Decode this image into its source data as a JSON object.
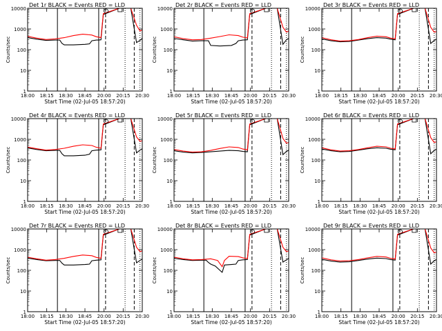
{
  "figure": {
    "xlabel_prefix": "Start Time (02-Jul-05 18:57:20)",
    "ylabel": "Counts/sec",
    "x_ticks": [
      "18:00",
      "18:15",
      "18:30",
      "18:45",
      "20:00",
      "20:15",
      "20:30"
    ],
    "y_ticks": [
      "1",
      "10",
      "100",
      "1000",
      "10000"
    ],
    "y_scale": "log",
    "colors": {
      "events": "#000000",
      "lld": "#ff0000"
    }
  },
  "chart_data": [
    {
      "type": "line",
      "title": "Det 1r  BLACK = Events  RED = LLD",
      "ylim": [
        1,
        10000
      ],
      "series": [
        {
          "name": "BLACK = Events",
          "color": "#000000",
          "x": [
            0,
            0.08,
            0.16,
            0.24,
            0.28,
            0.3,
            0.32,
            0.4,
            0.5,
            0.54,
            0.56,
            0.6,
            0.62,
            0.64,
            0.66,
            0.8,
            0.84,
            0.9,
            0.95,
            0.98,
            1.0
          ],
          "y": [
            380,
            320,
            280,
            290,
            290,
            200,
            170,
            170,
            180,
            190,
            270,
            290,
            290,
            300,
            5000,
            10000,
            10000,
            10000,
            220,
            280,
            350
          ]
        },
        {
          "name": "RED = LLD",
          "color": "#ff0000",
          "x": [
            0,
            0.08,
            0.16,
            0.24,
            0.32,
            0.4,
            0.48,
            0.56,
            0.6,
            0.64,
            0.66,
            0.8,
            0.84,
            0.9,
            0.95,
            0.98,
            1.0
          ],
          "y": [
            440,
            360,
            310,
            330,
            380,
            480,
            560,
            510,
            420,
            380,
            5500,
            10000,
            10000,
            10000,
            1500,
            800,
            900
          ]
        }
      ],
      "vlines_solid": [
        0.26,
        0.62
      ],
      "vlines_dashed": [
        0.68,
        0.93
      ],
      "vlines_dotted": [
        0.85,
        0.98
      ]
    },
    {
      "type": "line",
      "title": "Det 2r  BLACK = Events  RED = LLD",
      "ylim": [
        1,
        10000
      ],
      "series": [
        {
          "name": "BLACK = Events",
          "color": "#000000",
          "x": [
            0,
            0.08,
            0.16,
            0.24,
            0.3,
            0.32,
            0.4,
            0.5,
            0.54,
            0.56,
            0.6,
            0.64,
            0.66,
            0.8,
            0.84,
            0.9,
            0.95,
            0.98,
            1.0
          ],
          "y": [
            350,
            300,
            260,
            270,
            270,
            160,
            150,
            160,
            200,
            270,
            290,
            300,
            5000,
            10000,
            10000,
            10000,
            180,
            300,
            350
          ]
        },
        {
          "name": "RED = LLD",
          "color": "#ff0000",
          "x": [
            0,
            0.08,
            0.16,
            0.24,
            0.32,
            0.4,
            0.48,
            0.56,
            0.6,
            0.64,
            0.66,
            0.8,
            0.84,
            0.9,
            0.95,
            0.98,
            1.0
          ],
          "y": [
            420,
            340,
            300,
            310,
            360,
            430,
            520,
            480,
            400,
            370,
            5500,
            10000,
            10000,
            10000,
            1200,
            700,
            800
          ]
        }
      ],
      "vlines_solid": [
        0.26,
        0.62
      ],
      "vlines_dashed": [
        0.68,
        0.93
      ],
      "vlines_dotted": [
        0.85,
        0.98
      ]
    },
    {
      "type": "line",
      "title": "Det 3r  BLACK = Events  RED = LLD",
      "ylim": [
        1,
        10000
      ],
      "series": [
        {
          "name": "BLACK = Events",
          "color": "#000000",
          "x": [
            0,
            0.08,
            0.16,
            0.24,
            0.32,
            0.4,
            0.48,
            0.56,
            0.6,
            0.64,
            0.66,
            0.8,
            0.84,
            0.9,
            0.95,
            0.98,
            1.0
          ],
          "y": [
            330,
            270,
            240,
            250,
            290,
            340,
            380,
            360,
            320,
            300,
            5000,
            10000,
            10000,
            10000,
            200,
            280,
            320
          ]
        },
        {
          "name": "RED = LLD",
          "color": "#ff0000",
          "x": [
            0,
            0.08,
            0.16,
            0.24,
            0.32,
            0.4,
            0.48,
            0.56,
            0.6,
            0.64,
            0.66,
            0.8,
            0.84,
            0.9,
            0.95,
            0.98,
            1.0
          ],
          "y": [
            380,
            300,
            260,
            270,
            310,
            380,
            450,
            420,
            360,
            330,
            5500,
            10000,
            10000,
            10000,
            1200,
            700,
            750
          ]
        }
      ],
      "vlines_solid": [
        0.26,
        0.62
      ],
      "vlines_dashed": [
        0.68,
        0.93
      ],
      "vlines_dotted": [
        0.85,
        0.98
      ]
    },
    {
      "type": "line",
      "title": "Det 4r  BLACK = Events  RED = LLD",
      "ylim": [
        1,
        10000
      ],
      "series": [
        {
          "name": "BLACK = Events",
          "color": "#000000",
          "x": [
            0,
            0.08,
            0.16,
            0.24,
            0.28,
            0.3,
            0.32,
            0.4,
            0.5,
            0.54,
            0.56,
            0.6,
            0.64,
            0.66,
            0.8,
            0.84,
            0.9,
            0.95,
            0.98,
            1.0
          ],
          "y": [
            380,
            320,
            280,
            290,
            290,
            200,
            160,
            160,
            170,
            190,
            280,
            300,
            310,
            5000,
            10000,
            10000,
            10000,
            220,
            300,
            350
          ]
        },
        {
          "name": "RED = LLD",
          "color": "#ff0000",
          "x": [
            0,
            0.08,
            0.16,
            0.24,
            0.32,
            0.4,
            0.48,
            0.56,
            0.6,
            0.64,
            0.66,
            0.8,
            0.84,
            0.9,
            0.95,
            0.98,
            1.0
          ],
          "y": [
            420,
            350,
            300,
            320,
            370,
            460,
            540,
            500,
            410,
            370,
            5500,
            10000,
            10000,
            10000,
            1300,
            800,
            850
          ]
        }
      ],
      "vlines_solid": [
        0.26,
        0.62
      ],
      "vlines_dashed": [
        0.68,
        0.93
      ],
      "vlines_dotted": [
        0.85,
        0.98
      ]
    },
    {
      "type": "line",
      "title": "Det 5r  BLACK = Events  RED = LLD",
      "ylim": [
        1,
        10000
      ],
      "series": [
        {
          "name": "BLACK = Events",
          "color": "#000000",
          "x": [
            0,
            0.08,
            0.16,
            0.24,
            0.32,
            0.4,
            0.48,
            0.56,
            0.6,
            0.64,
            0.66,
            0.8,
            0.84,
            0.9,
            0.95,
            0.98,
            1.0
          ],
          "y": [
            280,
            240,
            220,
            230,
            250,
            270,
            290,
            280,
            260,
            250,
            5000,
            10000,
            10000,
            10000,
            180,
            260,
            300
          ]
        },
        {
          "name": "RED = LLD",
          "color": "#ff0000",
          "x": [
            0,
            0.08,
            0.16,
            0.24,
            0.32,
            0.4,
            0.48,
            0.56,
            0.6,
            0.64,
            0.66,
            0.8,
            0.84,
            0.9,
            0.95,
            0.98,
            1.0
          ],
          "y": [
            320,
            270,
            240,
            250,
            290,
            360,
            430,
            400,
            340,
            310,
            5500,
            10000,
            10000,
            10000,
            1100,
            650,
            700
          ]
        }
      ],
      "vlines_solid": [
        0.26,
        0.62
      ],
      "vlines_dashed": [
        0.68,
        0.93
      ],
      "vlines_dotted": [
        0.85,
        0.98
      ]
    },
    {
      "type": "line",
      "title": "Det 6r  BLACK = Events  RED = LLD",
      "ylim": [
        1,
        10000
      ],
      "series": [
        {
          "name": "BLACK = Events",
          "color": "#000000",
          "x": [
            0,
            0.08,
            0.16,
            0.24,
            0.32,
            0.4,
            0.48,
            0.56,
            0.6,
            0.64,
            0.66,
            0.8,
            0.84,
            0.9,
            0.95,
            0.98,
            1.0
          ],
          "y": [
            340,
            280,
            250,
            260,
            300,
            350,
            390,
            370,
            330,
            310,
            5000,
            10000,
            10000,
            10000,
            200,
            290,
            330
          ]
        },
        {
          "name": "RED = LLD",
          "color": "#ff0000",
          "x": [
            0,
            0.08,
            0.16,
            0.24,
            0.32,
            0.4,
            0.48,
            0.56,
            0.6,
            0.64,
            0.66,
            0.8,
            0.84,
            0.9,
            0.95,
            0.98,
            1.0
          ],
          "y": [
            390,
            310,
            270,
            280,
            320,
            390,
            460,
            430,
            370,
            340,
            5500,
            10000,
            10000,
            10000,
            1200,
            700,
            760
          ]
        }
      ],
      "vlines_solid": [
        0.26,
        0.62
      ],
      "vlines_dashed": [
        0.68,
        0.93
      ],
      "vlines_dotted": [
        0.85,
        0.98
      ]
    },
    {
      "type": "line",
      "title": "Det 7r  BLACK = Events  RED = LLD",
      "ylim": [
        1,
        10000
      ],
      "series": [
        {
          "name": "BLACK = Events",
          "color": "#000000",
          "x": [
            0,
            0.08,
            0.16,
            0.24,
            0.28,
            0.3,
            0.32,
            0.4,
            0.5,
            0.54,
            0.56,
            0.6,
            0.64,
            0.66,
            0.8,
            0.84,
            0.9,
            0.95,
            0.98,
            1.0
          ],
          "y": [
            390,
            330,
            290,
            300,
            300,
            220,
            180,
            180,
            190,
            200,
            290,
            310,
            320,
            5000,
            10000,
            10000,
            10000,
            230,
            300,
            360
          ]
        },
        {
          "name": "RED = LLD",
          "color": "#ff0000",
          "x": [
            0,
            0.08,
            0.16,
            0.24,
            0.32,
            0.4,
            0.48,
            0.56,
            0.6,
            0.64,
            0.66,
            0.8,
            0.84,
            0.9,
            0.95,
            0.98,
            1.0
          ],
          "y": [
            430,
            360,
            310,
            330,
            380,
            470,
            550,
            510,
            420,
            380,
            5500,
            10000,
            10000,
            10000,
            1300,
            800,
            870
          ]
        }
      ],
      "vlines_solid": [
        0.26,
        0.62
      ],
      "vlines_dashed": [
        0.68,
        0.93
      ],
      "vlines_dotted": [
        0.85,
        0.98
      ]
    },
    {
      "type": "line",
      "title": "Det 8r  BLACK = Events  RED = LLD",
      "ylim": [
        1,
        10000
      ],
      "series": [
        {
          "name": "BLACK = Events",
          "color": "#000000",
          "x": [
            0,
            0.08,
            0.16,
            0.24,
            0.28,
            0.3,
            0.32,
            0.36,
            0.4,
            0.42,
            0.44,
            0.5,
            0.54,
            0.56,
            0.6,
            0.64,
            0.66,
            0.8,
            0.84,
            0.9,
            0.95,
            0.98,
            1.0
          ],
          "y": [
            380,
            330,
            300,
            310,
            310,
            240,
            200,
            160,
            100,
            80,
            180,
            190,
            200,
            300,
            320,
            330,
            5000,
            10000,
            10000,
            10000,
            250,
            320,
            380
          ]
        },
        {
          "name": "RED = LLD",
          "color": "#ff0000",
          "x": [
            0,
            0.08,
            0.16,
            0.24,
            0.32,
            0.38,
            0.42,
            0.44,
            0.48,
            0.56,
            0.6,
            0.64,
            0.66,
            0.8,
            0.84,
            0.9,
            0.95,
            0.98,
            1.0
          ],
          "y": [
            430,
            360,
            320,
            330,
            360,
            300,
            150,
            300,
            480,
            460,
            400,
            370,
            5500,
            10000,
            10000,
            10000,
            1300,
            800,
            870
          ]
        }
      ],
      "vlines_solid": [
        0.26,
        0.62
      ],
      "vlines_dashed": [
        0.68,
        0.93
      ],
      "vlines_dotted": [
        0.85,
        0.98
      ]
    },
    {
      "type": "line",
      "title": "Det 9r  BLACK = Events  RED = LLD",
      "ylim": [
        1,
        10000
      ],
      "series": [
        {
          "name": "BLACK = Events",
          "color": "#000000",
          "x": [
            0,
            0.08,
            0.16,
            0.24,
            0.32,
            0.4,
            0.48,
            0.56,
            0.6,
            0.64,
            0.66,
            0.8,
            0.84,
            0.9,
            0.95,
            0.98,
            1.0
          ],
          "y": [
            340,
            280,
            250,
            260,
            300,
            350,
            390,
            370,
            330,
            310,
            5000,
            10000,
            10000,
            10000,
            200,
            290,
            330
          ]
        },
        {
          "name": "RED = LLD",
          "color": "#ff0000",
          "x": [
            0,
            0.08,
            0.16,
            0.24,
            0.32,
            0.4,
            0.48,
            0.56,
            0.6,
            0.64,
            0.66,
            0.8,
            0.84,
            0.9,
            0.95,
            0.98,
            1.0
          ],
          "y": [
            400,
            320,
            280,
            290,
            330,
            400,
            470,
            440,
            380,
            350,
            5500,
            10000,
            10000,
            10000,
            1200,
            700,
            760
          ]
        }
      ],
      "vlines_solid": [
        0.26,
        0.62
      ],
      "vlines_dashed": [
        0.68,
        0.93
      ],
      "vlines_dotted": [
        0.85,
        0.98
      ]
    }
  ]
}
